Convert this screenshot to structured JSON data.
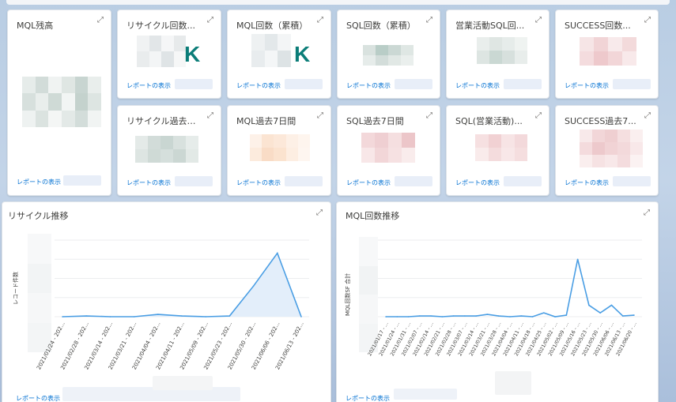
{
  "colors": {
    "accent_teal": "#0b7d78",
    "link_blue": "#0070d2",
    "line_blue": "#4a9ee4",
    "area_fill": "#e3eefa"
  },
  "icons": {
    "expand": "expand-icon"
  },
  "link_label": "レポートの表示",
  "tiles": {
    "mql_balance": {
      "title": "MQL残高"
    },
    "recycle_count": {
      "title": "リサイクル回数...",
      "suffix": "K"
    },
    "mql_count": {
      "title": "MQL回数（累積）",
      "suffix": "K"
    },
    "sql_count": {
      "title": "SQL回数（累積）"
    },
    "sales_sql": {
      "title": "営業活動SQL回..."
    },
    "success_count": {
      "title": "SUCCESS回数..."
    },
    "recycle_7d": {
      "title": "リサイクル過去7..."
    },
    "mql_7d": {
      "title": "MQL過去7日間"
    },
    "sql_7d": {
      "title": "SQL過去7日間"
    },
    "sql_sales_7d": {
      "title": "SQL(営業活動)..."
    },
    "success_7d": {
      "title": "SUCCESS過去7..."
    }
  },
  "charts": {
    "recycle_trend": {
      "title": "リサイクル推移",
      "chart_data": {
        "type": "area",
        "ylabel": "レコード件数",
        "categories": [
          "2021/01/24 - 202...",
          "2021/02/28 - 202...",
          "2021/03/14 - 202...",
          "2021/03/21 - 202...",
          "2021/04/04 - 202...",
          "2021/04/11 - 202...",
          "2021/05/09 - 202...",
          "2021/05/23 - 202...",
          "2021/05/30 - 202...",
          "2021/06/06 - 202...",
          "2021/06/13 - 202..."
        ],
        "values": [
          0,
          1,
          0,
          0,
          3,
          1,
          0,
          1,
          40,
          83,
          0
        ],
        "ylim": [
          0,
          100
        ],
        "grid": true
      }
    },
    "mql_trend": {
      "title": "MQL回数推移",
      "chart_data": {
        "type": "line",
        "ylabel": "MQL回数SF 合計",
        "categories": [
          "2021/01/17 - ...",
          "2021/01/24 - ...",
          "2021/01/31 - ...",
          "2021/02/07 - ...",
          "2021/02/14 - ...",
          "2021/02/21 - ...",
          "2021/02/28 - ...",
          "2021/03/07 - ...",
          "2021/03/14 - ...",
          "2021/03/21 - ...",
          "2021/03/28 - ...",
          "2021/04/04 - ...",
          "2021/04/11 - ...",
          "2021/04/18 - ...",
          "2021/04/25 - ...",
          "2021/05/02 - ...",
          "2021/05/09 - ...",
          "2021/05/16 - ...",
          "2021/05/23 - ...",
          "2021/05/30 - ...",
          "2021/06/06 - ...",
          "2021/06/13 - ...",
          "2021/06/20 - ..."
        ],
        "values": [
          0,
          0,
          0,
          1,
          1,
          0,
          1,
          1,
          1,
          3,
          1,
          0,
          1,
          0,
          5,
          0,
          2,
          75,
          15,
          5,
          15,
          1,
          2
        ],
        "ylim": [
          0,
          100
        ],
        "grid": true
      }
    }
  }
}
